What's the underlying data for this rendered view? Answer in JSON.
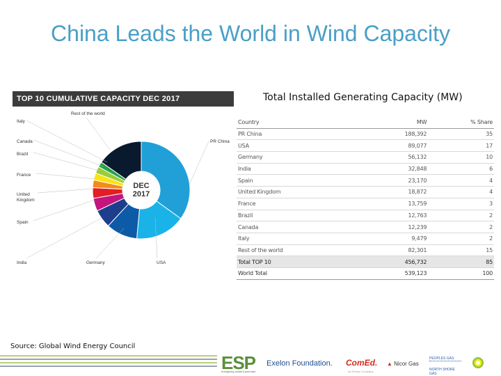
{
  "title": "China Leads the World in Wind Capacity",
  "source": "Source: Global Wind Energy Council",
  "chart_data": [
    {
      "type": "pie",
      "title": "TOP 10 CUMULATIVE CAPACITY DEC 2017",
      "center_label": [
        "DEC",
        "2017"
      ],
      "categories": [
        "PR China",
        "USA",
        "Germany",
        "India",
        "Spain",
        "United Kingdom",
        "France",
        "Brazil",
        "Canada",
        "Italy",
        "Rest of the world"
      ],
      "values": [
        188392,
        89077,
        56132,
        32848,
        23170,
        18872,
        13759,
        12763,
        12239,
        9479,
        82301
      ],
      "slice_labels": [
        "PR China",
        "USA",
        "Germany",
        "India",
        "Spain",
        "United\nKingdom",
        "France",
        "Brazil",
        "Canada",
        "Italy",
        "Rest of the world"
      ],
      "colors": [
        "#21a0d8",
        "#1ab3e8",
        "#0d5aa7",
        "#1d3e8c",
        "#c4157e",
        "#e31e24",
        "#f28c1d",
        "#f9e313",
        "#9ccb3b",
        "#22a34a",
        "#0a1a2e"
      ]
    },
    {
      "type": "table",
      "title": "Total Installed Generating Capacity (MW)",
      "columns": [
        "Country",
        "MW",
        "% Share"
      ],
      "rows": [
        {
          "country": "PR China",
          "mw": "188,392",
          "share": "35"
        },
        {
          "country": "USA",
          "mw": "89,077",
          "share": "17"
        },
        {
          "country": "Germany",
          "mw": "56,132",
          "share": "10"
        },
        {
          "country": "India",
          "mw": "32,848",
          "share": "6"
        },
        {
          "country": "Spain",
          "mw": "23,170",
          "share": "4"
        },
        {
          "country": "United Kingdom",
          "mw": "18,872",
          "share": "4"
        },
        {
          "country": "France",
          "mw": "13,759",
          "share": "3"
        },
        {
          "country": "Brazil",
          "mw": "12,763",
          "share": "2"
        },
        {
          "country": "Canada",
          "mw": "12,239",
          "share": "2"
        },
        {
          "country": "Italy",
          "mw": "9,479",
          "share": "2"
        },
        {
          "country": "Rest of the world",
          "mw": "82,301",
          "share": "15"
        }
      ],
      "total_top10": {
        "country": "Total TOP 10",
        "mw": "456,732",
        "share": "85"
      },
      "world_total": {
        "country": "World Total",
        "mw": "539,123",
        "share": "100"
      }
    }
  ],
  "logos": {
    "esp": "ESP",
    "esp_tagline": "energizing student potential",
    "exelon": "Exelon Foundation.",
    "comed": "ComEd.",
    "comed_tagline": "An Exelon Company",
    "nicor": "Nicor Gas",
    "small1": "PEOPLES GAS",
    "small2": "NORTH SHORE GAS",
    "bp_icon": "bp-helios-icon"
  }
}
